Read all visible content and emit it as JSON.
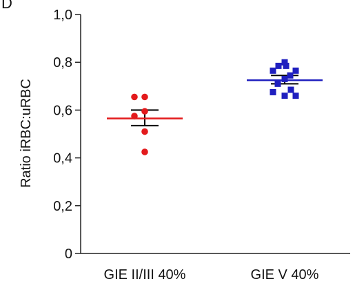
{
  "panel_label": "D",
  "chart_data": {
    "type": "scatter",
    "ylabel": "Ratio iRBC:uRBC",
    "xlabel": "",
    "ylim": [
      0,
      1.0
    ],
    "yticks": [
      {
        "value": 0,
        "label": "0"
      },
      {
        "value": 0.2,
        "label": "0,2"
      },
      {
        "value": 0.4,
        "label": "0,4"
      },
      {
        "value": 0.6,
        "label": "0,6"
      },
      {
        "value": 0.8,
        "label": "0,8"
      },
      {
        "value": 1.0,
        "label": "1,0"
      }
    ],
    "categories": [
      "GIE II/III 40%",
      "GIE V 40%"
    ],
    "groups": [
      {
        "category": "GIE II/III 40%",
        "marker": "circle",
        "color": "#e31a1c",
        "points": [
          0.655,
          0.655,
          0.595,
          0.575,
          0.51,
          0.425
        ],
        "mean": 0.565,
        "sem_upper": 0.6,
        "sem_lower": 0.535
      },
      {
        "category": "GIE V 40%",
        "marker": "square",
        "color": "#1f1fbf",
        "points": [
          0.785,
          0.785,
          0.8,
          0.765,
          0.765,
          0.745,
          0.73,
          0.71,
          0.685,
          0.675,
          0.66,
          0.66
        ],
        "mean": 0.725,
        "sem_upper": 0.745,
        "sem_lower": 0.71
      }
    ],
    "mean_line_color_by_group": true,
    "error_bar_color": "#000000"
  }
}
